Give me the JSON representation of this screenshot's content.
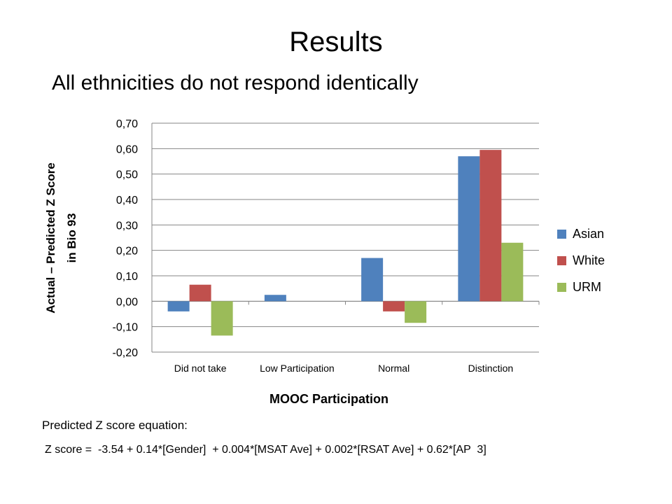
{
  "slide": {
    "title": "Results",
    "subtitle": "All ethnicities do not respond identically",
    "equation_label": "Predicted Z score equation:",
    "equation": "Z score =  -3.54 + 0.14*[Gender]  + 0.004*[MSAT Ave] + 0.002*[RSAT Ave] + 0.62*[AP  3]"
  },
  "chart_data": {
    "type": "bar",
    "xlabel": "MOOC Participation",
    "ylabel": "Actual – Predicted Z Score in Bio 93",
    "ylabel_lines": [
      "Actual – Predicted Z Score",
      "in Bio 93"
    ],
    "categories": [
      "Did not take",
      "Low Participation",
      "Normal",
      "Distinction"
    ],
    "series": [
      {
        "name": "Asian",
        "color": "#4f81bd",
        "values": [
          -0.04,
          0.025,
          0.17,
          0.57
        ]
      },
      {
        "name": "White",
        "color": "#c0504d",
        "values": [
          0.065,
          0.0,
          -0.04,
          0.595
        ]
      },
      {
        "name": "URM",
        "color": "#9bbb59",
        "values": [
          -0.135,
          0.0,
          -0.085,
          0.23
        ]
      }
    ],
    "ylim": [
      -0.2,
      0.7
    ],
    "yticks": [
      "-0,20",
      "-0,10",
      "0,00",
      "0,10",
      "0,20",
      "0,30",
      "0,40",
      "0,50",
      "0,60",
      "0,70"
    ],
    "grid": true,
    "legend_position": "right"
  }
}
